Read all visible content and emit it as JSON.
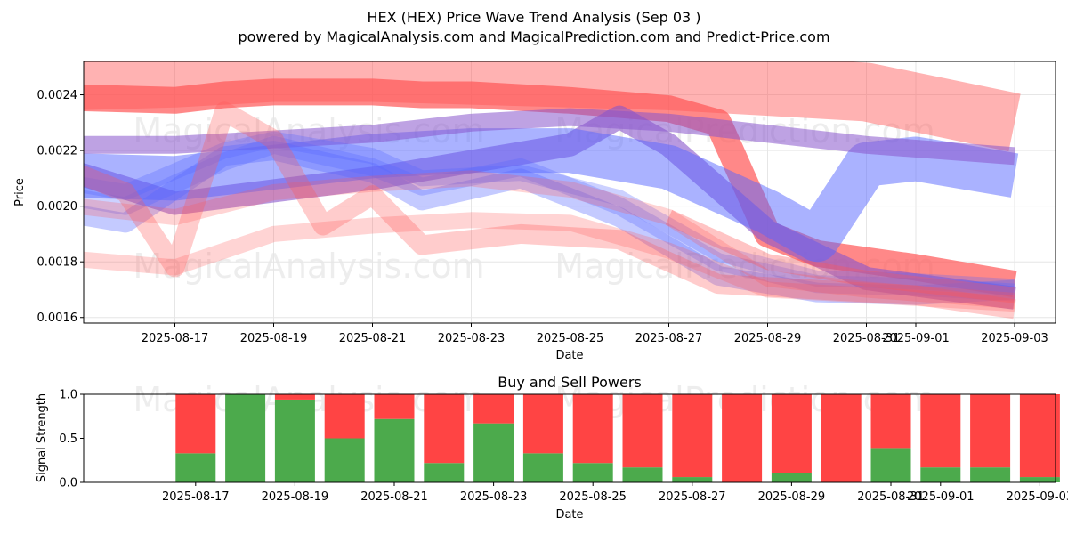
{
  "title": "HEX (HEX) Price Wave Trend Analysis (Sep 03 )",
  "subtitle": "powered by MagicalAnalysis.com and MagicalPrediction.com and Predict-Price.com",
  "watermarks": [
    "MagicalAnalysis.com",
    "MagicalPrediction.com"
  ],
  "colors": {
    "buy": "#4caa4c",
    "sell": "#ff4444",
    "red_band": "#ff5555",
    "blue_band": "#5566ff",
    "purple_band": "#8855cc"
  },
  "chart_data": [
    {
      "type": "line",
      "xlabel": "Date",
      "ylabel": "Price",
      "grid": true,
      "x_ticks": [
        "2025-08-17",
        "2025-08-19",
        "2025-08-21",
        "2025-08-23",
        "2025-08-25",
        "2025-08-27",
        "2025-08-29",
        "2025-08-31",
        "2025-09-01",
        "2025-09-03"
      ],
      "y_ticks": [
        0.0016,
        0.0018,
        0.002,
        0.0022,
        0.0024
      ],
      "ylim": [
        0.00158,
        0.00252
      ],
      "series": [
        {
          "color": "red",
          "opacity": 0.45,
          "x": [
            "2025-08-15",
            "2025-08-17",
            "2025-08-19",
            "2025-08-21",
            "2025-08-23",
            "2025-08-25",
            "2025-08-27",
            "2025-08-29",
            "2025-08-31",
            "2025-09-03"
          ],
          "values": [
            0.00245,
            0.00246,
            0.00248,
            0.00248,
            0.00247,
            0.00246,
            0.00245,
            0.00243,
            0.00241,
            0.0023
          ]
        },
        {
          "color": "red",
          "opacity": 0.7,
          "x": [
            "2025-08-15",
            "2025-08-17",
            "2025-08-18",
            "2025-08-19",
            "2025-08-21",
            "2025-08-22",
            "2025-08-23",
            "2025-08-25",
            "2025-08-27",
            "2025-08-28",
            "2025-08-29",
            "2025-08-30",
            "2025-09-01",
            "2025-09-03"
          ],
          "values": [
            0.00239,
            0.00238,
            0.0024,
            0.00241,
            0.00241,
            0.0024,
            0.0024,
            0.00238,
            0.00235,
            0.0023,
            0.0019,
            0.00183,
            0.00178,
            0.00172
          ]
        },
        {
          "color": "purple",
          "opacity": 0.6,
          "x": [
            "2025-08-15",
            "2025-08-17",
            "2025-08-21",
            "2025-08-23",
            "2025-08-25",
            "2025-08-26",
            "2025-08-27",
            "2025-08-29",
            "2025-08-31",
            "2025-09-03"
          ],
          "values": [
            0.00212,
            0.00201,
            0.0021,
            0.00216,
            0.00222,
            0.00232,
            0.00222,
            0.00191,
            0.00174,
            0.00167
          ]
        },
        {
          "color": "blue",
          "opacity": 0.5,
          "x": [
            "2025-08-15",
            "2025-08-17",
            "2025-08-19",
            "2025-08-21",
            "2025-08-23",
            "2025-08-25",
            "2025-08-27",
            "2025-08-29",
            "2025-08-30",
            "2025-08-31",
            "2025-09-01",
            "2025-09-03"
          ],
          "values": [
            0.00211,
            0.0021,
            0.00214,
            0.00218,
            0.0022,
            0.0022,
            0.00214,
            0.00198,
            0.00188,
            0.00215,
            0.00217,
            0.00211
          ]
        },
        {
          "color": "purple",
          "opacity": 0.55,
          "x": [
            "2025-08-15",
            "2025-08-17",
            "2025-08-19",
            "2025-08-21",
            "2025-08-23",
            "2025-08-25",
            "2025-08-27",
            "2025-08-29",
            "2025-08-31",
            "2025-09-03"
          ],
          "values": [
            0.00222,
            0.00222,
            0.00224,
            0.00226,
            0.0023,
            0.00232,
            0.0023,
            0.00226,
            0.00222,
            0.00218
          ]
        },
        {
          "color": "blue",
          "opacity": 0.35,
          "x": [
            "2025-08-15",
            "2025-08-16",
            "2025-08-18",
            "2025-08-19",
            "2025-08-21",
            "2025-08-22",
            "2025-08-24",
            "2025-08-26",
            "2025-08-28",
            "2025-08-30",
            "2025-09-01",
            "2025-09-03"
          ],
          "values": [
            0.00197,
            0.00194,
            0.00218,
            0.0022,
            0.00212,
            0.00202,
            0.0021,
            0.00196,
            0.00175,
            0.00169,
            0.00168,
            0.0017
          ]
        },
        {
          "color": "blue",
          "opacity": 0.3,
          "x": [
            "2025-08-15",
            "2025-08-16",
            "2025-08-18",
            "2025-08-19",
            "2025-08-21",
            "2025-08-22",
            "2025-08-24",
            "2025-08-26",
            "2025-08-28",
            "2025-08-30",
            "2025-09-01",
            "2025-09-03"
          ],
          "values": [
            0.00203,
            0.002,
            0.00216,
            0.00222,
            0.00214,
            0.00207,
            0.00214,
            0.002,
            0.0018,
            0.00172,
            0.00171,
            0.00169
          ]
        },
        {
          "color": "blue",
          "opacity": 0.3,
          "x": [
            "2025-08-15",
            "2025-08-16",
            "2025-08-18",
            "2025-08-19",
            "2025-08-21",
            "2025-08-22",
            "2025-08-24",
            "2025-08-26",
            "2025-08-28",
            "2025-08-30",
            "2025-09-01",
            "2025-09-03"
          ],
          "values": [
            0.00208,
            0.00205,
            0.0022,
            0.00224,
            0.00218,
            0.0021,
            0.00212,
            0.00203,
            0.00183,
            0.00174,
            0.00173,
            0.00171
          ]
        },
        {
          "color": "red",
          "opacity": 0.3,
          "x": [
            "2025-08-15",
            "2025-08-16",
            "2025-08-17",
            "2025-08-18",
            "2025-08-19",
            "2025-08-20",
            "2025-08-21",
            "2025-08-22",
            "2025-08-24",
            "2025-08-26",
            "2025-08-28",
            "2025-08-30",
            "2025-09-01",
            "2025-09-03"
          ],
          "values": [
            0.00212,
            0.00205,
            0.00178,
            0.00234,
            0.00224,
            0.00193,
            0.00204,
            0.00186,
            0.0019,
            0.00188,
            0.00172,
            0.0017,
            0.00168,
            0.00163
          ]
        },
        {
          "color": "red",
          "opacity": 0.25,
          "x": [
            "2025-08-15",
            "2025-08-17",
            "2025-08-19",
            "2025-08-21",
            "2025-08-23",
            "2025-08-25",
            "2025-08-27",
            "2025-08-29",
            "2025-08-31",
            "2025-09-03"
          ],
          "values": [
            0.00181,
            0.00178,
            0.0019,
            0.00193,
            0.00195,
            0.00194,
            0.00184,
            0.0017,
            0.00168,
            0.00165
          ]
        },
        {
          "color": "red",
          "opacity": 0.25,
          "x": [
            "2025-08-15",
            "2025-08-17",
            "2025-08-19",
            "2025-08-21",
            "2025-08-23",
            "2025-08-25",
            "2025-08-27",
            "2025-08-29",
            "2025-08-31",
            "2025-09-03"
          ],
          "values": [
            0.002,
            0.00196,
            0.00205,
            0.00208,
            0.0021,
            0.00206,
            0.00196,
            0.00174,
            0.0017,
            0.00166
          ]
        },
        {
          "color": "red",
          "opacity": 0.35,
          "x": [
            "2025-08-27",
            "2025-08-29",
            "2025-08-31",
            "2025-09-03"
          ],
          "values": [
            0.00196,
            0.0018,
            0.00174,
            0.00168
          ]
        }
      ]
    },
    {
      "type": "bar",
      "title": "Buy and Sell Powers",
      "xlabel": "Date",
      "ylabel": "Signal Strength",
      "ylim": [
        0,
        1
      ],
      "y_ticks": [
        "0.0",
        "0.5",
        "1.0"
      ],
      "x_ticks": [
        "2025-08-17",
        "2025-08-19",
        "2025-08-21",
        "2025-08-23",
        "2025-08-25",
        "2025-08-27",
        "2025-08-29",
        "2025-08-31",
        "2025-09-01",
        "2025-09-03"
      ],
      "categories": [
        "2025-08-16",
        "2025-08-17",
        "2025-08-18",
        "2025-08-19",
        "2025-08-20",
        "2025-08-21",
        "2025-08-22",
        "2025-08-23",
        "2025-08-24",
        "2025-08-25",
        "2025-08-26",
        "2025-08-27",
        "2025-08-28",
        "2025-08-29",
        "2025-08-30",
        "2025-08-31",
        "2025-09-01",
        "2025-09-02"
      ],
      "series": [
        {
          "name": "Buy",
          "values": [
            0.33,
            1.0,
            0.94,
            0.5,
            0.72,
            0.22,
            0.67,
            0.33,
            0.22,
            0.17,
            0.06,
            0.0,
            0.11,
            0.0,
            0.39,
            0.17,
            0.17,
            0.06
          ]
        },
        {
          "name": "Sell",
          "values": [
            0.67,
            0.0,
            0.06,
            0.5,
            0.28,
            0.78,
            0.33,
            0.67,
            0.78,
            0.83,
            0.94,
            1.0,
            0.89,
            1.0,
            0.61,
            0.83,
            0.83,
            0.94
          ]
        }
      ]
    }
  ]
}
